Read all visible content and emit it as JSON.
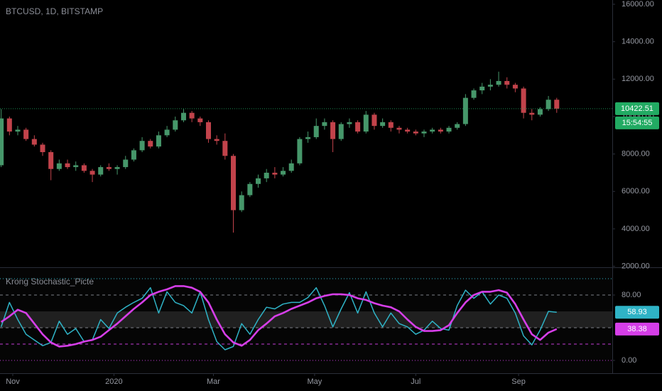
{
  "chart_data": [
    {
      "type": "candlestick",
      "title": "BTCUSD, 1D, BITSTAMP",
      "countdown": "15:54:55",
      "up_color": "#46976a",
      "down_color": "#c2434b",
      "last_color": "#22ab63",
      "x": [
        -7,
        -2,
        3,
        8,
        13,
        18,
        23,
        28,
        33,
        38,
        43,
        48,
        53,
        58,
        63,
        68,
        73,
        78,
        83,
        88,
        93,
        98,
        103,
        108,
        113,
        118,
        123,
        128,
        133,
        138,
        143,
        148,
        153,
        158,
        163,
        168,
        173,
        178,
        183,
        188,
        193,
        198,
        203,
        208,
        213,
        218,
        223,
        228,
        233,
        238,
        243,
        248,
        253,
        258,
        263,
        268,
        273,
        278,
        283,
        288,
        293,
        298,
        303,
        308,
        313,
        318,
        323,
        328
      ],
      "open": [
        7400,
        9900,
        9200,
        9300,
        8800,
        8500,
        8100,
        7200,
        7500,
        7300,
        7400,
        7100,
        6900,
        7300,
        7200,
        7300,
        7700,
        8200,
        8700,
        8400,
        9000,
        9300,
        9800,
        10200,
        9900,
        9700,
        8800,
        8700,
        7900,
        5000,
        5800,
        6400,
        6700,
        7000,
        6900,
        7100,
        7500,
        8800,
        8900,
        9500,
        9700,
        8800,
        9600,
        9700,
        9200,
        10100,
        9500,
        9700,
        9400,
        9300,
        9200,
        9100,
        9200,
        9300,
        9200,
        9400,
        9600,
        11000,
        11400,
        11600,
        11700,
        11900,
        11700,
        11500,
        10200,
        10100,
        10400,
        10900
      ],
      "high": [
        10400,
        10000,
        9500,
        9400,
        9000,
        8600,
        8200,
        7700,
        7700,
        7600,
        7500,
        7200,
        7400,
        7500,
        7400,
        7900,
        8300,
        8900,
        8800,
        9200,
        9500,
        10000,
        10400,
        10300,
        10000,
        9800,
        9000,
        9100,
        8000,
        6000,
        6500,
        6900,
        7200,
        7300,
        7300,
        7700,
        8900,
        9200,
        9900,
        9900,
        9800,
        9700,
        9900,
        9800,
        10300,
        10200,
        9900,
        9800,
        9500,
        9400,
        9300,
        9300,
        9400,
        9400,
        9500,
        9700,
        11200,
        11500,
        11800,
        12000,
        12400,
        12100,
        11800,
        11600,
        10400,
        10500,
        11100,
        11000
      ],
      "low": [
        7300,
        9000,
        9000,
        8700,
        8400,
        7900,
        6600,
        7100,
        7200,
        7100,
        7000,
        6500,
        6800,
        7100,
        6900,
        7200,
        7600,
        8100,
        8300,
        8300,
        8900,
        9200,
        9700,
        9700,
        9500,
        8600,
        8500,
        7700,
        3800,
        4900,
        5700,
        6200,
        6500,
        6700,
        6800,
        7000,
        7400,
        8600,
        8800,
        9300,
        8100,
        8700,
        9400,
        9100,
        9100,
        9300,
        9400,
        9200,
        9100,
        9100,
        9000,
        8900,
        9100,
        9100,
        9100,
        9300,
        9500,
        10900,
        11200,
        11400,
        11600,
        11500,
        11300,
        9900,
        9800,
        10000,
        10300,
        10200
      ],
      "close": [
        9900,
        9200,
        9300,
        8800,
        8500,
        8100,
        7200,
        7500,
        7300,
        7400,
        7100,
        6900,
        7300,
        7200,
        7300,
        7700,
        8200,
        8700,
        8400,
        9000,
        9300,
        9800,
        10200,
        9900,
        9700,
        8800,
        8700,
        7900,
        5000,
        5800,
        6400,
        6700,
        7000,
        6900,
        7100,
        7500,
        8800,
        8900,
        9500,
        9700,
        8800,
        9600,
        9700,
        9200,
        10100,
        9500,
        9700,
        9400,
        9300,
        9200,
        9100,
        9200,
        9300,
        9200,
        9400,
        9600,
        11000,
        11400,
        11600,
        11700,
        11900,
        11700,
        11500,
        10200,
        10100,
        10400,
        10900,
        10422.51
      ],
      "xlim": [
        -7.7,
        361.5
      ],
      "ylim": [
        1985,
        16228
      ],
      "xticks": [
        {
          "value": 0,
          "label": "Nov"
        },
        {
          "value": 61,
          "label": "2020"
        },
        {
          "value": 121,
          "label": "Mar"
        },
        {
          "value": 182,
          "label": "May"
        },
        {
          "value": 243,
          "label": "Jul"
        },
        {
          "value": 305,
          "label": "Sep"
        }
      ],
      "yticks": [
        {
          "value": 2000,
          "label": "2000.00"
        },
        {
          "value": 4000,
          "label": "4000.00"
        },
        {
          "value": 6000,
          "label": "6000.00"
        },
        {
          "value": 8000,
          "label": "8000.00"
        },
        {
          "value": 10000,
          "label": "10000.00"
        },
        {
          "value": 12000,
          "label": "12000.00"
        },
        {
          "value": 14000,
          "label": "14000.00"
        },
        {
          "value": 16000,
          "label": "16000.00"
        }
      ]
    },
    {
      "type": "line",
      "title": "Krong Stochastic_Picte",
      "x": [
        -7,
        -2,
        3,
        8,
        13,
        18,
        23,
        28,
        33,
        38,
        43,
        48,
        53,
        58,
        63,
        68,
        73,
        78,
        83,
        88,
        93,
        98,
        103,
        108,
        113,
        118,
        123,
        128,
        133,
        138,
        143,
        148,
        153,
        158,
        163,
        168,
        173,
        178,
        183,
        188,
        193,
        198,
        203,
        208,
        213,
        218,
        223,
        228,
        233,
        238,
        243,
        248,
        253,
        258,
        263,
        268,
        273,
        278,
        283,
        288,
        293,
        298,
        303,
        308,
        313,
        318,
        323,
        328
      ],
      "series": [
        {
          "color": "#2fb3c6",
          "width": 1.5,
          "values": [
            41,
            71,
            50,
            32,
            25,
            18,
            22,
            48,
            32,
            39,
            23,
            25,
            50,
            39,
            58,
            65,
            71,
            76,
            89,
            58,
            84,
            71,
            67,
            58,
            84,
            50,
            23,
            13,
            17,
            45,
            32,
            50,
            65,
            63,
            69,
            71,
            71,
            77,
            89,
            67,
            41,
            63,
            83,
            58,
            84,
            58,
            41,
            58,
            45,
            41,
            32,
            37,
            48,
            39,
            37,
            67,
            86,
            76,
            84,
            69,
            80,
            76,
            58,
            30,
            19,
            37,
            60,
            58.93
          ]
        },
        {
          "color": "#d63ee8",
          "width": 2.6,
          "values": [
            47,
            54,
            62,
            58,
            45,
            32,
            22,
            17,
            18,
            20,
            23,
            25,
            29,
            37,
            45,
            54,
            63,
            71,
            80,
            84,
            87,
            91,
            91,
            89,
            84,
            71,
            50,
            32,
            22,
            18,
            25,
            37,
            45,
            54,
            58,
            63,
            67,
            71,
            76,
            79,
            81,
            81,
            80,
            76,
            74,
            70,
            67,
            65,
            60,
            50,
            41,
            36,
            36,
            37,
            43,
            58,
            71,
            80,
            84,
            84,
            86,
            83,
            69,
            50,
            32,
            25,
            34,
            38.38
          ]
        }
      ],
      "band": [
        40,
        60
      ],
      "levels": [
        {
          "value": 100,
          "color": "#2fb3c6",
          "dash": "1 3"
        },
        {
          "value": 80,
          "color": "#7b7e86",
          "dash": "4 4"
        },
        {
          "value": 40,
          "color": "#7b7e86",
          "dash": "4 4"
        },
        {
          "value": 20,
          "color": "#c23ad6",
          "dash": "4 4"
        },
        {
          "value": 0,
          "color": "#c23ad6",
          "dash": "1 3"
        }
      ],
      "xlim": [
        -7.7,
        361.5
      ],
      "ylim": [
        -15.7,
        112.2
      ],
      "yticks": [
        {
          "value": 0,
          "label": "0.00"
        },
        {
          "value": 80,
          "label": "80.00"
        }
      ]
    }
  ]
}
